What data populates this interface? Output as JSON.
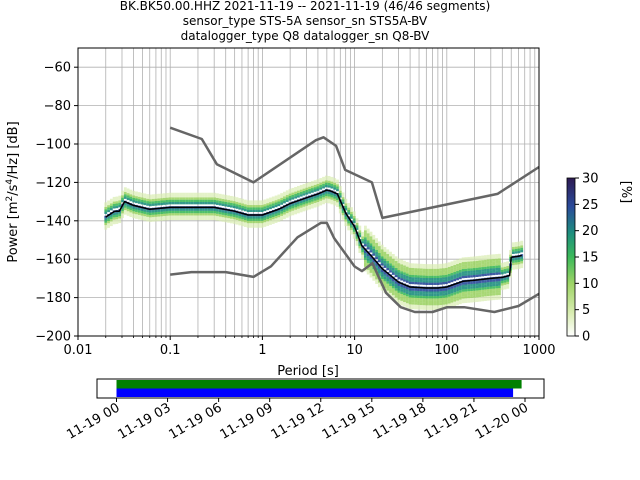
{
  "header": {
    "line1": "BK.BK50.00.HHZ   2021-11-19 -- 2021-11-19  (46/46 segments)",
    "line2": "sensor_type STS-5A sensor_sn STS5A-BV",
    "line3": "datalogger_type Q8 datalogger_sn Q8-BV"
  },
  "colorbar": {
    "label": "[%]",
    "ticks": [
      "0",
      "5",
      "10",
      "15",
      "20",
      "25",
      "30"
    ],
    "range": [
      0,
      30
    ],
    "colormap": [
      "#ffffff",
      "#d8ecb0",
      "#9fd467",
      "#3cb95a",
      "#1e8f7e",
      "#2a4a9a",
      "#2d1a52"
    ]
  },
  "timeline": {
    "ticks": [
      "11-19 00",
      "11-19 03",
      "11-19 06",
      "11-19 09",
      "11-19 12",
      "11-19 15",
      "11-19 18",
      "11-19 21",
      "11-20 00"
    ],
    "bars": [
      {
        "name": "data",
        "color": "#008000",
        "start_h": 0.0,
        "end_h": 23.8
      },
      {
        "name": "gaps-free",
        "color": "#0000ff",
        "start_h": 0.0,
        "end_h": 23.3
      }
    ]
  },
  "chart_data": {
    "type": "line",
    "xscale": "log",
    "xlabel": "Period [s]",
    "ylabel": "Power [m²/s⁴/Hz] [dB]",
    "xlim": [
      0.01,
      1000
    ],
    "ylim": [
      -200,
      -50
    ],
    "xticks": [
      "0.01",
      "0.1",
      "1",
      "10",
      "100",
      "1000"
    ],
    "yticks": [
      "−200",
      "−180",
      "−160",
      "−140",
      "−120",
      "−100",
      "−80",
      "−60"
    ],
    "grid": true,
    "series": [
      {
        "name": "NHNM",
        "color": "#666666",
        "x": [
          0.1,
          0.22,
          0.32,
          0.8,
          3.8,
          4.6,
          6.3,
          7.9,
          15.4,
          20,
          354.8,
          1000
        ],
        "y": [
          -91.5,
          -97.4,
          -110.5,
          -120,
          -98,
          -96.5,
          -101,
          -113.5,
          -120,
          -138.5,
          -126,
          -112
        ]
      },
      {
        "name": "NLNM",
        "color": "#666666",
        "x": [
          0.1,
          0.17,
          0.4,
          0.8,
          1.24,
          2.4,
          4.3,
          5,
          6,
          10,
          12,
          15.6,
          21.9,
          31.6,
          45,
          70,
          101,
          154,
          328,
          600,
          1000
        ],
        "y": [
          -168,
          -166.7,
          -166.7,
          -169.2,
          -163.7,
          -148.6,
          -141.1,
          -141.1,
          -149,
          -163.8,
          -166.2,
          -162.1,
          -177.5,
          -185,
          -187.5,
          -187.5,
          -185,
          -185,
          -187.5,
          -184.4,
          -178
        ]
      },
      {
        "name": "mean",
        "color": "#000000",
        "x": [
          0.02,
          0.025,
          0.028,
          0.032,
          0.04,
          0.06,
          0.1,
          0.2,
          0.3,
          0.5,
          0.7,
          1.0,
          1.5,
          2.0,
          3.0,
          4.0,
          5.0,
          5.5,
          6.5,
          8.0,
          10,
          12,
          15,
          20,
          30,
          40,
          60,
          80,
          100,
          150,
          200,
          300,
          400,
          480,
          500,
          600,
          650
        ],
        "y": [
          -138,
          -135,
          -135,
          -130,
          -132,
          -134,
          -133,
          -133,
          -133,
          -135,
          -137,
          -137,
          -134,
          -131,
          -128,
          -126,
          -124,
          -124.5,
          -126,
          -136,
          -143,
          -153,
          -158,
          -165,
          -172,
          -174.5,
          -175,
          -175,
          -174.5,
          -171.5,
          -171,
          -170,
          -169.5,
          -168.5,
          -159,
          -158.5,
          -158
        ]
      }
    ]
  }
}
